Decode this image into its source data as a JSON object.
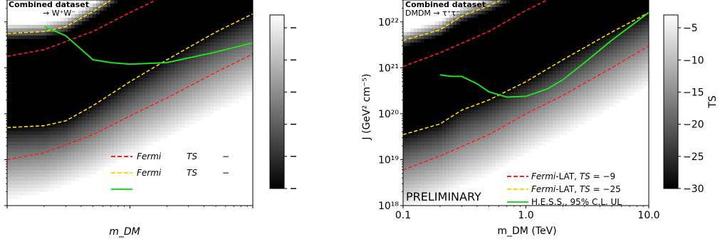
{
  "chart_data": [
    {
      "type": "heatmap",
      "title": "Combined dataset",
      "subtitle": "→ W⁺W⁻",
      "xlabel": "m_DM",
      "ylabel": "",
      "x_scale": "log",
      "y_scale": "log",
      "xlim": [
        0.1,
        10.0
      ],
      "ylim": [
        1e+18,
        3e+22
      ],
      "colorbar": {
        "label": "",
        "range": [
          -30,
          -3
        ],
        "ticks": [
          "",
          "",
          "",
          "",
          "",
          ""
        ]
      },
      "legend_position": "bottom-right",
      "series": [
        {
          "name": "Fermi TS",
          "color": "#ff2020",
          "style": "dashed",
          "x": [
            0.1,
            0.2,
            0.5,
            1.0,
            2.0,
            5.0,
            10.0
          ],
          "y": [
            1e+19,
            1.4e+19,
            3.5e+19,
            9e+19,
            2.2e+20,
            8e+20,
            2e+21
          ]
        },
        {
          "name": "Fermi TS",
          "color": "#ffd900",
          "style": "dashed",
          "x": [
            0.1,
            0.2,
            0.3,
            0.5,
            1.0,
            2.0,
            5.0,
            10.0
          ],
          "y": [
            5e+19,
            5.5e+19,
            7e+19,
            1.5e+20,
            5e+20,
            1.5e+21,
            6e+21,
            1.5e+22
          ]
        },
        {
          "name": "",
          "color": "#22dd22",
          "style": "solid",
          "x": [
            0.2,
            0.3,
            0.5,
            0.7,
            1.0,
            2.0,
            5.0,
            10.0
          ],
          "y": [
            8e+21,
            5e+21,
            1.5e+21,
            1.3e+21,
            1.2e+21,
            1.3e+21,
            2.2e+21,
            3.5e+21
          ]
        }
      ],
      "legend": {
        "entries": [
          {
            "parts": [
              "Fermi",
              "TS",
              "−"
            ],
            "series": 0
          },
          {
            "parts": [
              "Fermi",
              "TS",
              "−"
            ],
            "series": 1
          },
          {
            "parts": [
              ""
            ],
            "series": 2
          }
        ]
      },
      "annotations": []
    },
    {
      "type": "heatmap",
      "title": "Combined dataset",
      "subtitle": "DMDM → τ⁺τ⁻",
      "xlabel": "m_DM (TeV)",
      "ylabel": "J (GeV² cm⁻⁵)",
      "x_scale": "log",
      "y_scale": "log",
      "xlim": [
        0.1,
        10.0
      ],
      "ylim": [
        1e+18,
        3e+22
      ],
      "x_ticks": [
        {
          "value": 0.1,
          "label": "0.1"
        },
        {
          "value": 1.0,
          "label": "1.0"
        },
        {
          "value": 10.0,
          "label": "10.0"
        }
      ],
      "y_ticks": [
        {
          "value": 1e+18,
          "label": "10¹⁸"
        },
        {
          "value": 1e+19,
          "label": "10¹⁹"
        },
        {
          "value": 1e+20,
          "label": "10²⁰"
        },
        {
          "value": 1e+21,
          "label": "10²¹"
        },
        {
          "value": 1e+22,
          "label": "10²²"
        }
      ],
      "colorbar": {
        "label": "TS",
        "range": [
          -30,
          -3
        ],
        "ticks": [
          "−5",
          "−10",
          "−15",
          "−20",
          "−25",
          "−30"
        ]
      },
      "legend_position": "bottom-right",
      "series": [
        {
          "name": "Fermi-LAT, TS = −9",
          "color": "#ff2020",
          "style": "dashed",
          "x": [
            0.1,
            0.2,
            0.5,
            1.0,
            2.0,
            5.0,
            10.0
          ],
          "y": [
            6e+18,
            1.2e+19,
            3.5e+19,
            1e+20,
            2.5e+20,
            1e+21,
            3e+21
          ]
        },
        {
          "name": "Fermi-LAT, TS = −25",
          "color": "#ffd900",
          "style": "dashed",
          "x": [
            0.1,
            0.2,
            0.3,
            0.5,
            1.0,
            2.0,
            5.0,
            10.0
          ],
          "y": [
            3.5e+19,
            6e+19,
            1.2e+20,
            2e+20,
            5e+20,
            1.5e+21,
            6e+21,
            1.6e+22
          ]
        },
        {
          "name": "H.E.S.S., 95% C.L. UL",
          "color": "#22dd22",
          "style": "solid",
          "x": [
            0.2,
            0.25,
            0.3,
            0.4,
            0.5,
            0.7,
            1.0,
            1.5,
            2.0,
            3.0,
            5.0,
            10.0
          ],
          "y": [
            7e+20,
            6.5e+20,
            6.5e+20,
            4.5e+20,
            3e+20,
            2.3e+20,
            2.4e+20,
            3.5e+20,
            5.5e+20,
            1.3e+21,
            4e+21,
            1.6e+22
          ]
        }
      ],
      "legend": {
        "entries": [
          {
            "parts": [
              "Fermi",
              "-LAT, ",
              "TS",
              " = −9"
            ],
            "series": 0
          },
          {
            "parts": [
              "Fermi",
              "-LAT, ",
              "TS",
              " = −25"
            ],
            "series": 1
          },
          {
            "parts": [
              "H.E.S.S., 95% C.L. UL"
            ],
            "series": 2
          }
        ]
      },
      "annotations": [
        "PRELIMINARY"
      ]
    }
  ]
}
